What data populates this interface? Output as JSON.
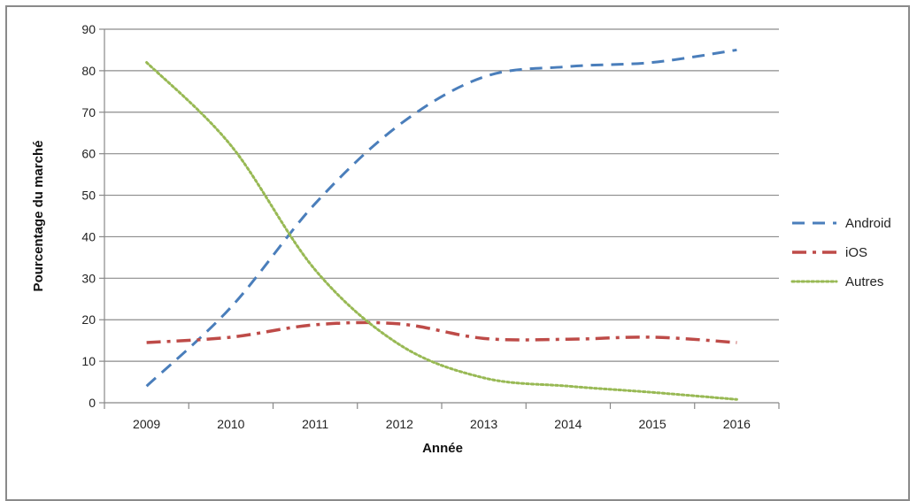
{
  "chart_data": {
    "type": "line",
    "title": "",
    "xlabel": "Année",
    "ylabel": "Pourcentage du marché",
    "categories": [
      "2009",
      "2010",
      "2011",
      "2012",
      "2013",
      "2014",
      "2015",
      "2016"
    ],
    "ylim": [
      0,
      90
    ],
    "yticks": [
      0,
      10,
      20,
      30,
      40,
      50,
      60,
      70,
      80,
      90
    ],
    "grid": true,
    "legend_position": "right",
    "series": [
      {
        "name": "Android",
        "values": [
          4,
          23,
          48,
          67,
          78.5,
          81,
          82,
          85
        ],
        "color": "#4a7ebb",
        "dash": "dashed"
      },
      {
        "name": "iOS",
        "values": [
          14.5,
          15.8,
          18.8,
          19,
          15.5,
          15.3,
          15.8,
          14.5
        ],
        "color": "#be4b48",
        "dash": "dash-dot"
      },
      {
        "name": "Autres",
        "values": [
          82,
          62,
          32,
          14,
          6,
          4,
          2.5,
          0.8
        ],
        "color": "#98b954",
        "dash": "dotted"
      }
    ]
  }
}
